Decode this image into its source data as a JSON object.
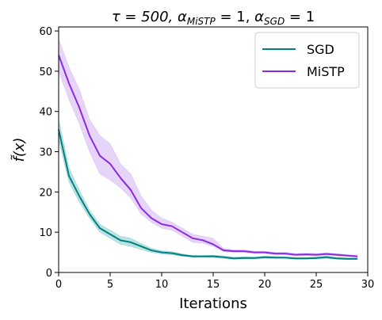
{
  "chart_data": {
    "type": "line",
    "title": {
      "prefix": "τ = 500, ",
      "alpha_symbol": "α",
      "sub_mistp": "MiSTP",
      "eq_mistp": " = 1, ",
      "sub_sgd": "SGD",
      "eq_sgd": " = 1"
    },
    "xlabel": "Iterations",
    "ylabel": "f̃(x)",
    "xlim": [
      0,
      30
    ],
    "ylim": [
      0,
      61
    ],
    "xticks": [
      0,
      5,
      10,
      15,
      20,
      25,
      30
    ],
    "yticks": [
      0,
      10,
      20,
      30,
      40,
      50,
      60
    ],
    "grid": false,
    "legend": "top-right",
    "x": [
      0,
      1,
      2,
      3,
      4,
      5,
      6,
      7,
      8,
      9,
      10,
      11,
      12,
      13,
      14,
      15,
      16,
      17,
      18,
      19,
      20,
      21,
      22,
      23,
      24,
      25,
      26,
      27,
      28,
      29
    ],
    "series": [
      {
        "name": "SGD",
        "color": "#008080",
        "band_color": "#8fcfcf",
        "values": [
          35.5,
          24,
          19,
          14.5,
          11,
          9.5,
          8,
          7.5,
          6.5,
          5.5,
          5,
          4.8,
          4.3,
          4,
          4,
          4,
          3.8,
          3.5,
          3.6,
          3.6,
          3.8,
          3.7,
          3.7,
          3.5,
          3.5,
          3.6,
          3.8,
          3.5,
          3.4,
          3.4
        ],
        "lower": [
          33,
          22.5,
          17.5,
          13.5,
          10,
          8.5,
          7,
          6.5,
          5.7,
          5,
          4.6,
          4.4,
          4,
          3.8,
          3.8,
          3.7,
          3.5,
          3.3,
          3.4,
          3.4,
          3.5,
          3.5,
          3.5,
          3.3,
          3.3,
          3.4,
          3.5,
          3.3,
          3.2,
          3.2
        ],
        "upper": [
          38,
          26,
          20.5,
          15.5,
          12,
          10.5,
          9,
          8.5,
          7.2,
          6,
          5.4,
          5.2,
          4.6,
          4.2,
          4.2,
          4.3,
          4.1,
          3.8,
          3.9,
          3.8,
          4.1,
          4,
          3.9,
          3.7,
          3.7,
          3.8,
          4.1,
          3.7,
          3.6,
          3.6
        ]
      },
      {
        "name": "MiSTP",
        "color": "#8a2be2",
        "band_color": "#d7b8f5",
        "values": [
          54,
          47,
          41,
          34,
          29,
          27,
          23.5,
          20.5,
          16,
          13.5,
          12,
          11.5,
          10,
          8.5,
          8,
          7,
          5.5,
          5.3,
          5.3,
          5,
          5,
          4.7,
          4.7,
          4.4,
          4.5,
          4.4,
          4.6,
          4.4,
          4.2,
          4
        ],
        "lower": [
          50,
          43,
          37,
          30,
          24.5,
          23,
          21,
          18.5,
          14.5,
          12.5,
          11,
          10.5,
          9,
          7.5,
          7.3,
          6.5,
          5.2,
          5,
          5,
          4.7,
          4.7,
          4.4,
          4.4,
          4.1,
          4.2,
          4.1,
          4.3,
          4.1,
          4,
          3.8
        ],
        "upper": [
          58,
          51,
          45.5,
          38,
          34,
          32,
          27,
          24.5,
          19,
          15.5,
          13.5,
          12.5,
          11,
          9.5,
          9,
          8.5,
          6,
          5.6,
          5.6,
          5.3,
          5.3,
          5,
          5,
          4.7,
          4.8,
          4.7,
          4.9,
          4.7,
          4.4,
          4.2
        ]
      }
    ]
  }
}
